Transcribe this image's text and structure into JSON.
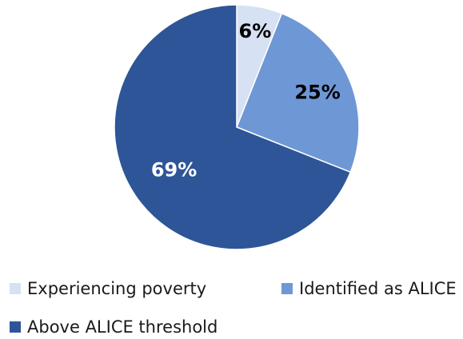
{
  "chart_data": {
    "type": "pie",
    "title": "",
    "labels": [
      "Experiencing poverty",
      "Identified as ALICE",
      "Above ALICE threshold"
    ],
    "values": [
      6,
      25,
      69
    ],
    "value_labels": [
      "6%",
      "25%",
      "69%"
    ],
    "colors": [
      "#d6e1f3",
      "#6e97d5",
      "#2e5597"
    ],
    "label_colors": [
      "#000000",
      "#000000",
      "#ffffff"
    ],
    "start_angle": "12 o'clock",
    "direction": "clockwise",
    "legend_position": "bottom"
  }
}
